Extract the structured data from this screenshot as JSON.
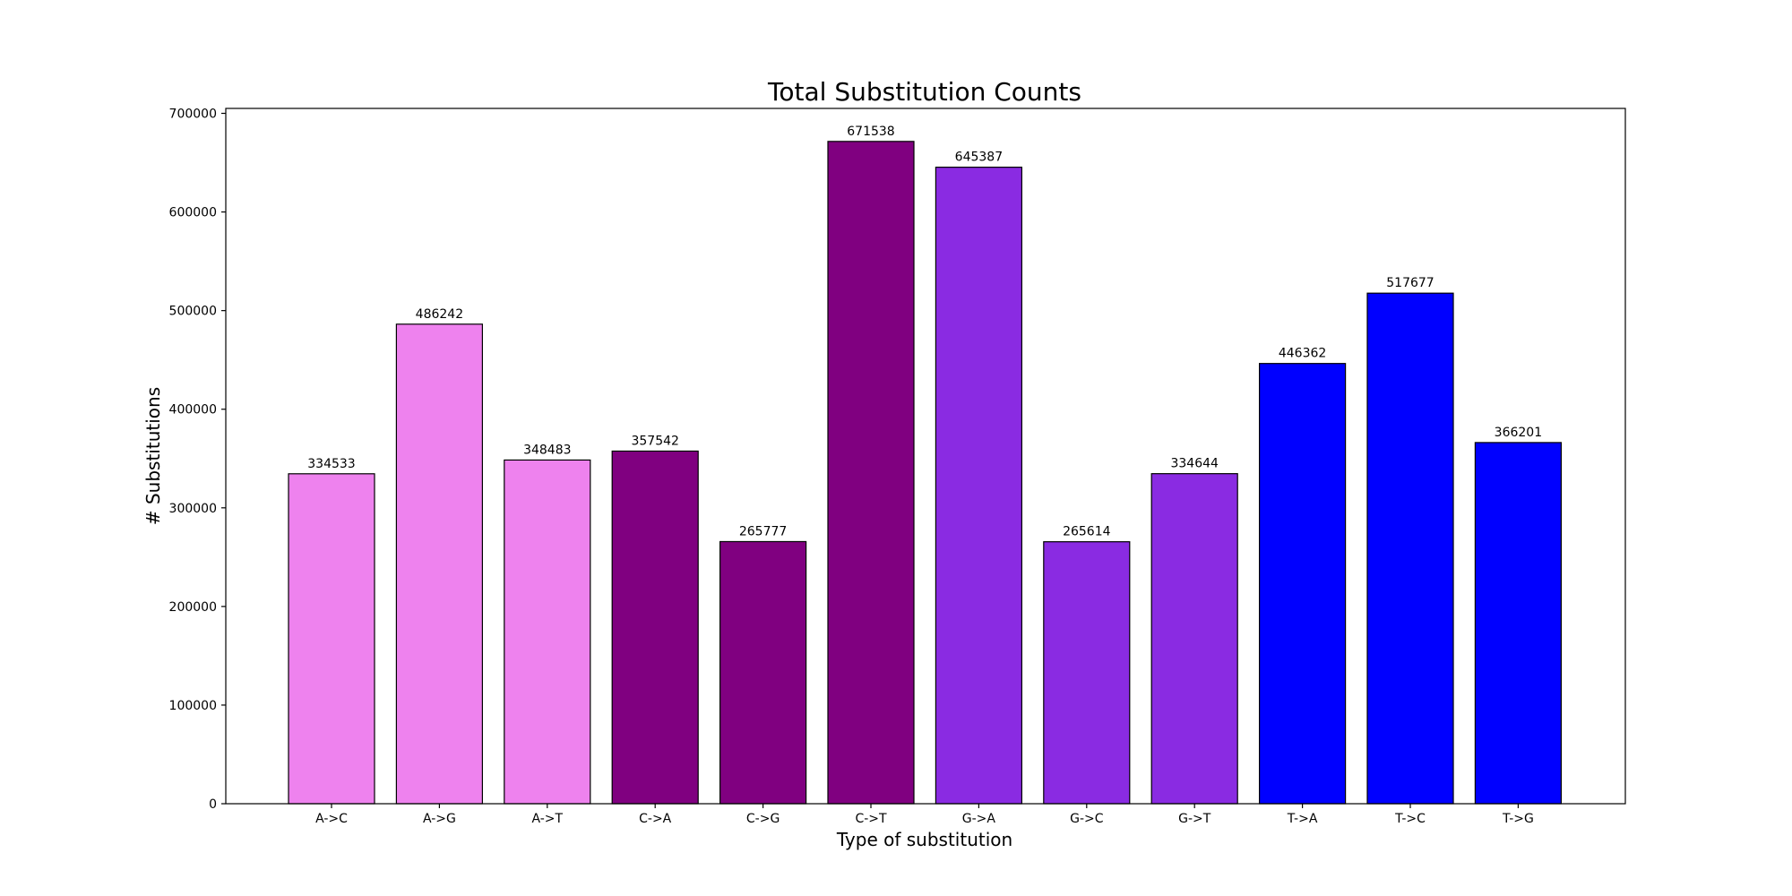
{
  "chart_data": {
    "type": "bar",
    "title": "Total Substitution Counts",
    "xlabel": "Type of substitution",
    "ylabel": "# Substitutions",
    "categories": [
      "A->C",
      "A->G",
      "A->T",
      "C->A",
      "C->G",
      "C->T",
      "G->A",
      "G->C",
      "G->T",
      "T->A",
      "T->C",
      "T->G"
    ],
    "values": [
      334533,
      486242,
      348483,
      357542,
      265777,
      671538,
      645387,
      265614,
      334644,
      446362,
      517677,
      366201
    ],
    "bar_colors": [
      "#ee82ee",
      "#ee82ee",
      "#ee82ee",
      "#800080",
      "#800080",
      "#800080",
      "#8a2be2",
      "#8a2be2",
      "#8a2be2",
      "#0000ff",
      "#0000ff",
      "#0000ff"
    ],
    "edge_color": "#000000",
    "ylim": [
      0,
      705000
    ],
    "yticks": [
      0,
      100000,
      200000,
      300000,
      400000,
      500000,
      600000,
      700000
    ],
    "ytick_labels": [
      "0",
      "100000",
      "200000",
      "300000",
      "400000",
      "500000",
      "600000",
      "700000"
    ],
    "grid": false,
    "legend": "none"
  }
}
